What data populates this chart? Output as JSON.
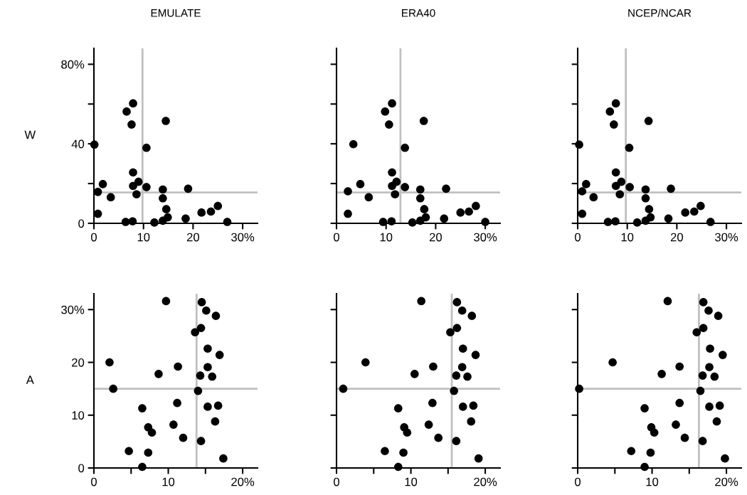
{
  "chart_data": [
    {
      "type": "scatter",
      "title": "EMULATE",
      "ylabel": "W",
      "color": "#000000",
      "marker": "circle",
      "x": [
        0.1,
        0.8,
        0.8,
        1.8,
        3.4,
        6.6,
        7.6,
        7.9,
        7.9,
        7.9,
        9.0,
        8.6,
        6.4,
        7.8,
        10.6,
        10.6,
        12.2,
        13.9,
        13.9,
        13.9,
        14.5,
        14.6,
        14.9,
        19.0,
        18.5,
        21.7,
        23.6,
        25.0,
        26.9
      ],
      "values": [
        39.6,
        15.8,
        4.8,
        19.7,
        13.1,
        56.2,
        49.7,
        60.3,
        25.6,
        18.8,
        20.9,
        14.6,
        0.7,
        1.0,
        38.0,
        18.2,
        0.4,
        17.0,
        12.6,
        1.3,
        51.5,
        7.1,
        3.0,
        17.4,
        2.4,
        5.4,
        5.9,
        8.7,
        0.7
      ],
      "xlim": [
        0,
        33
      ],
      "ylim": [
        0,
        88
      ],
      "xticks": [
        0,
        10,
        20,
        {
          "value": 30,
          "label": "30%"
        }
      ],
      "yticks": [
        0,
        {
          "value": 20,
          "label": null
        },
        40,
        {
          "value": 60,
          "label": null
        },
        {
          "value": 80,
          "label": "80%"
        }
      ],
      "ref_lines": [
        {
          "axis": "x",
          "value": 9.8,
          "color": "#c0c0c0"
        },
        {
          "axis": "y",
          "value": 15.5,
          "color": "#c0c0c0"
        }
      ]
    },
    {
      "type": "scatter",
      "title": "ERA40",
      "color": "#000000",
      "marker": "circle",
      "tick_labels": "x",
      "x": [
        2.3,
        2.3,
        3.4,
        4.8,
        6.5,
        9.8,
        10.6,
        11.2,
        11.2,
        11.2,
        12.1,
        11.8,
        9.4,
        11.1,
        13.8,
        13.8,
        15.3,
        16.9,
        16.9,
        16.9,
        17.6,
        17.7,
        18.0,
        22.1,
        21.7,
        25.0,
        26.7,
        28.1,
        30.0
      ],
      "values": [
        16.1,
        4.8,
        39.8,
        19.7,
        13.1,
        56.2,
        49.7,
        60.3,
        25.6,
        18.8,
        20.9,
        14.6,
        0.7,
        1.0,
        38.0,
        18.2,
        0.4,
        17.0,
        12.6,
        1.3,
        51.5,
        7.1,
        3.0,
        17.4,
        2.4,
        5.4,
        5.9,
        8.7,
        0.7
      ],
      "xlim": [
        0,
        33
      ],
      "ylim": [
        0,
        88
      ],
      "xticks": [
        0,
        10,
        20,
        {
          "value": 30,
          "label": "30%"
        }
      ],
      "yticks": [
        {
          "value": 0,
          "label": null
        },
        {
          "value": 20,
          "label": null
        },
        {
          "value": 40,
          "label": null
        },
        {
          "value": 60,
          "label": null
        },
        {
          "value": 80,
          "label": null
        }
      ],
      "ref_lines": [
        {
          "axis": "x",
          "value": 12.9,
          "color": "#c0c0c0"
        },
        {
          "axis": "y",
          "value": 15.5,
          "color": "#c0c0c0"
        }
      ]
    },
    {
      "type": "scatter",
      "title": "NCEP/NCAR",
      "color": "#000000",
      "marker": "circle",
      "tick_labels": "x",
      "x": [
        0.3,
        0.9,
        0.9,
        1.7,
        3.2,
        6.5,
        7.3,
        7.7,
        7.7,
        7.7,
        8.8,
        8.5,
        6.1,
        7.6,
        10.4,
        10.5,
        12.0,
        13.7,
        13.7,
        13.7,
        14.3,
        14.4,
        14.7,
        18.8,
        18.3,
        21.7,
        23.5,
        24.8,
        26.8
      ],
      "values": [
        39.6,
        16.1,
        4.8,
        19.7,
        13.1,
        56.2,
        49.7,
        60.3,
        25.6,
        18.8,
        20.9,
        14.6,
        0.7,
        1.0,
        38.0,
        18.2,
        0.4,
        17.0,
        12.6,
        1.3,
        51.5,
        7.1,
        3.0,
        17.4,
        2.4,
        5.4,
        5.9,
        8.7,
        0.7
      ],
      "xlim": [
        0,
        33
      ],
      "ylim": [
        0,
        88
      ],
      "xticks": [
        0,
        10,
        20,
        {
          "value": 30,
          "label": "30%"
        }
      ],
      "yticks": [
        {
          "value": 0,
          "label": null
        },
        {
          "value": 20,
          "label": null
        },
        {
          "value": 40,
          "label": null
        },
        {
          "value": 60,
          "label": null
        },
        {
          "value": 80,
          "label": null
        }
      ],
      "ref_lines": [
        {
          "axis": "x",
          "value": 9.7,
          "color": "#c0c0c0"
        },
        {
          "axis": "y",
          "value": 15.5,
          "color": "#c0c0c0"
        }
      ]
    },
    {
      "type": "scatter",
      "ylabel": "A",
      "color": "#000000",
      "marker": "circle",
      "x": [
        2.1,
        2.6,
        4.7,
        6.5,
        6.5,
        7.3,
        7.8,
        7.3,
        8.7,
        9.7,
        10.7,
        11.2,
        11.3,
        12.0,
        13.6,
        14.4,
        14.5,
        15.1,
        16.4,
        15.3,
        16.9,
        15.3,
        14.3,
        15.9,
        14.0,
        15.3,
        16.7,
        16.3,
        14.4,
        17.4
      ],
      "values": [
        20.0,
        15.0,
        3.2,
        11.3,
        0.2,
        7.7,
        6.7,
        2.9,
        17.8,
        31.6,
        8.2,
        12.3,
        19.2,
        5.7,
        25.7,
        26.5,
        31.4,
        29.8,
        28.8,
        22.6,
        21.4,
        19.1,
        17.5,
        17.3,
        14.6,
        11.6,
        11.8,
        8.8,
        5.1,
        1.8
      ],
      "xlim": [
        0,
        22
      ],
      "ylim": [
        0,
        33
      ],
      "xticks": [
        0,
        {
          "value": 5,
          "label": null
        },
        10,
        {
          "value": 15,
          "label": null
        },
        {
          "value": 20,
          "label": "20%"
        }
      ],
      "yticks": [
        0,
        10,
        20,
        {
          "value": 30,
          "label": "30%"
        }
      ],
      "ref_lines": [
        {
          "axis": "x",
          "value": 13.8,
          "color": "#c0c0c0"
        },
        {
          "axis": "y",
          "value": 15.0,
          "color": "#c0c0c0"
        }
      ]
    },
    {
      "type": "scatter",
      "color": "#000000",
      "marker": "circle",
      "tick_labels": "x",
      "x": [
        0.9,
        3.9,
        6.5,
        8.3,
        8.3,
        9.1,
        9.5,
        9.0,
        10.5,
        11.4,
        12.4,
        12.9,
        13.0,
        13.7,
        15.3,
        16.2,
        16.2,
        16.9,
        18.2,
        17.0,
        18.7,
        16.9,
        16.1,
        17.6,
        15.8,
        17.0,
        18.4,
        18.1,
        16.1,
        19.1
      ],
      "values": [
        15.0,
        20.0,
        3.2,
        11.3,
        0.2,
        7.7,
        6.7,
        2.9,
        17.8,
        31.6,
        8.2,
        12.3,
        19.2,
        5.7,
        25.7,
        26.5,
        31.4,
        29.8,
        28.8,
        22.6,
        21.4,
        19.1,
        17.5,
        17.3,
        14.6,
        11.6,
        11.8,
        8.8,
        5.1,
        1.8
      ],
      "xlim": [
        0,
        22
      ],
      "ylim": [
        0,
        33
      ],
      "xticks": [
        0,
        {
          "value": 5,
          "label": null
        },
        10,
        {
          "value": 15,
          "label": null
        },
        {
          "value": 20,
          "label": "20%"
        }
      ],
      "yticks": [
        {
          "value": 0,
          "label": null
        },
        {
          "value": 10,
          "label": null
        },
        {
          "value": 20,
          "label": null
        },
        {
          "value": 30,
          "label": null
        }
      ],
      "ref_lines": [
        {
          "axis": "x",
          "value": 15.5,
          "color": "#c0c0c0"
        },
        {
          "axis": "y",
          "value": 15.0,
          "color": "#c0c0c0"
        }
      ]
    },
    {
      "type": "scatter",
      "color": "#000000",
      "marker": "circle",
      "tick_labels": "x",
      "x": [
        0.2,
        4.7,
        7.2,
        9.0,
        9.0,
        9.9,
        10.3,
        9.8,
        11.3,
        12.1,
        13.2,
        13.7,
        13.7,
        14.4,
        16.0,
        16.9,
        16.9,
        17.6,
        18.9,
        17.8,
        19.5,
        17.7,
        16.8,
        18.4,
        16.5,
        17.7,
        19.1,
        18.7,
        16.8,
        19.8
      ],
      "values": [
        15.0,
        20.0,
        3.2,
        11.3,
        0.2,
        7.7,
        6.7,
        2.9,
        17.8,
        31.6,
        8.2,
        12.3,
        19.2,
        5.7,
        25.7,
        26.5,
        31.4,
        29.8,
        28.8,
        22.6,
        21.4,
        19.1,
        17.5,
        17.3,
        14.6,
        11.6,
        11.8,
        8.8,
        5.1,
        1.8
      ],
      "xlim": [
        0,
        22
      ],
      "ylim": [
        0,
        33
      ],
      "xticks": [
        0,
        {
          "value": 5,
          "label": null
        },
        10,
        {
          "value": 15,
          "label": null
        },
        {
          "value": 20,
          "label": "20%"
        }
      ],
      "yticks": [
        {
          "value": 0,
          "label": null
        },
        {
          "value": 10,
          "label": null
        },
        {
          "value": 20,
          "label": null
        },
        {
          "value": 30,
          "label": null
        }
      ],
      "ref_lines": [
        {
          "axis": "x",
          "value": 16.3,
          "color": "#c0c0c0"
        },
        {
          "axis": "y",
          "value": 15.0,
          "color": "#c0c0c0"
        }
      ]
    }
  ]
}
